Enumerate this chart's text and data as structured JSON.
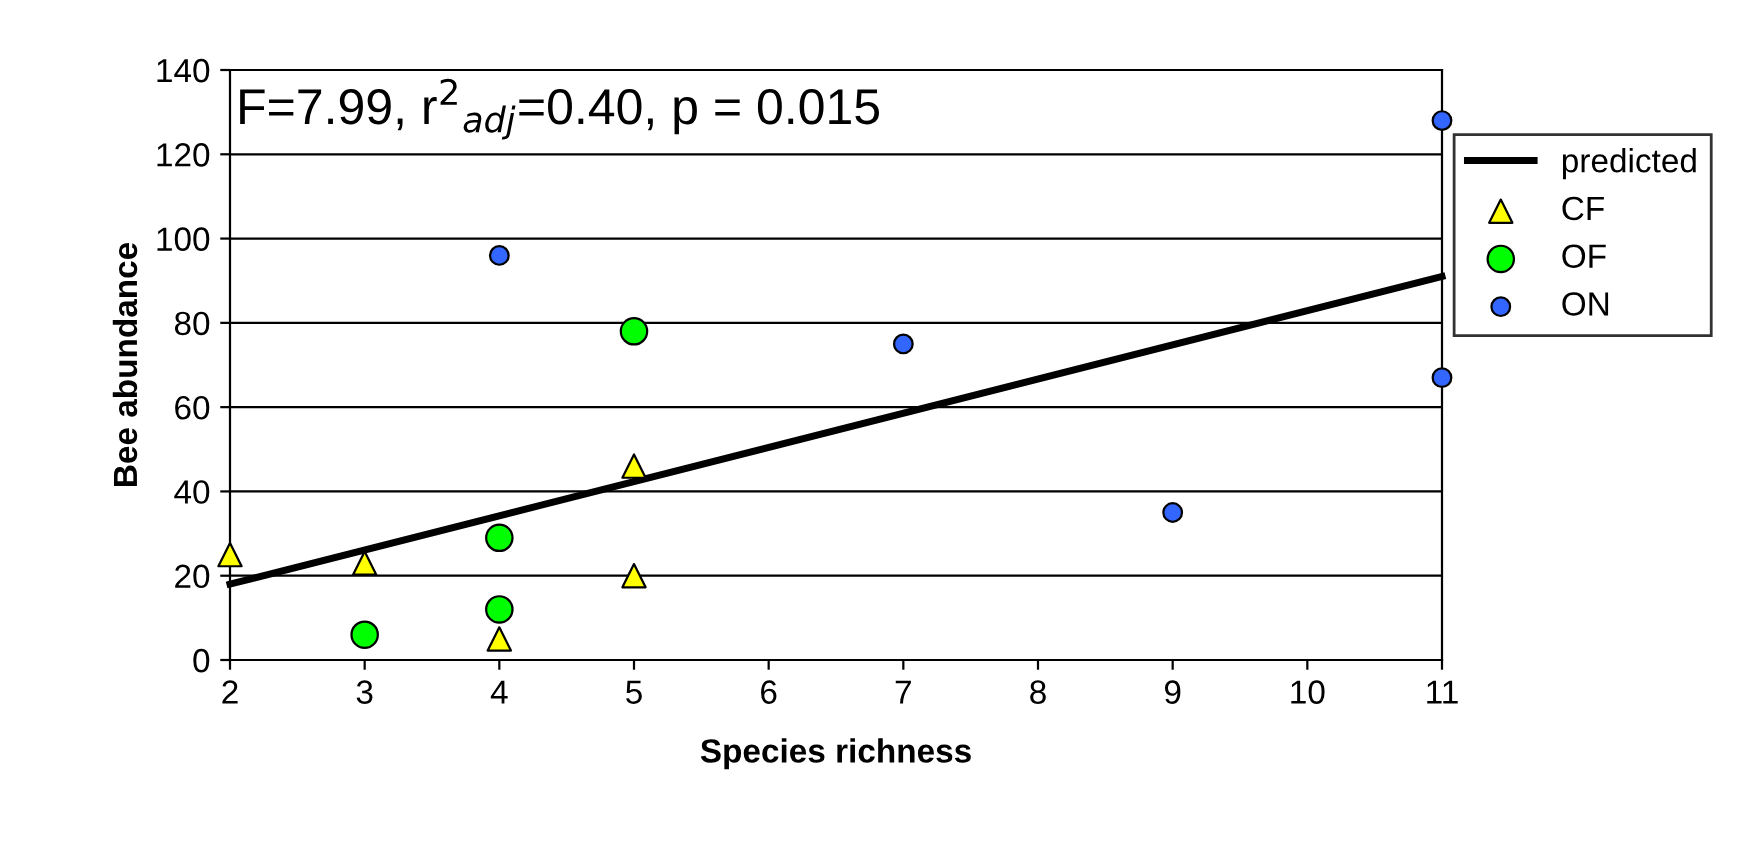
{
  "chart_data": {
    "type": "scatter",
    "xlabel": "Species richness",
    "ylabel": "Bee abundance",
    "annotations": [
      "F=7.99, r$^{2}$$_{adj}$=0.40, p = 0.015"
    ],
    "xlim": [
      2,
      11
    ],
    "xticks": [
      2,
      3,
      4,
      5,
      6,
      7,
      8,
      9,
      10,
      11
    ],
    "ylim": [
      0,
      140
    ],
    "yticks": [
      0,
      20,
      40,
      60,
      80,
      100,
      120,
      140
    ],
    "grid": "y",
    "legend": "right",
    "series": [
      {
        "name": "predicted",
        "type": "line",
        "color": "#000000",
        "marker": "none",
        "line_style": "solid",
        "x": [
          2,
          11
        ],
        "values": [
          18,
          91
        ]
      },
      {
        "name": "CF",
        "color": "#ffff00",
        "marker": "triangle",
        "x": [
          2,
          3,
          4,
          5,
          5
        ],
        "values": [
          25,
          23,
          5,
          46,
          20
        ]
      },
      {
        "name": "OF",
        "color": "#00ff00",
        "marker": "circle",
        "x": [
          3,
          4,
          4,
          5
        ],
        "values": [
          6,
          29,
          12,
          78
        ]
      },
      {
        "name": "ON",
        "color": "#3366ff",
        "marker": "circle",
        "x": [
          4,
          7,
          9,
          11,
          11
        ],
        "values": [
          96,
          75,
          35,
          128,
          67
        ]
      }
    ]
  }
}
